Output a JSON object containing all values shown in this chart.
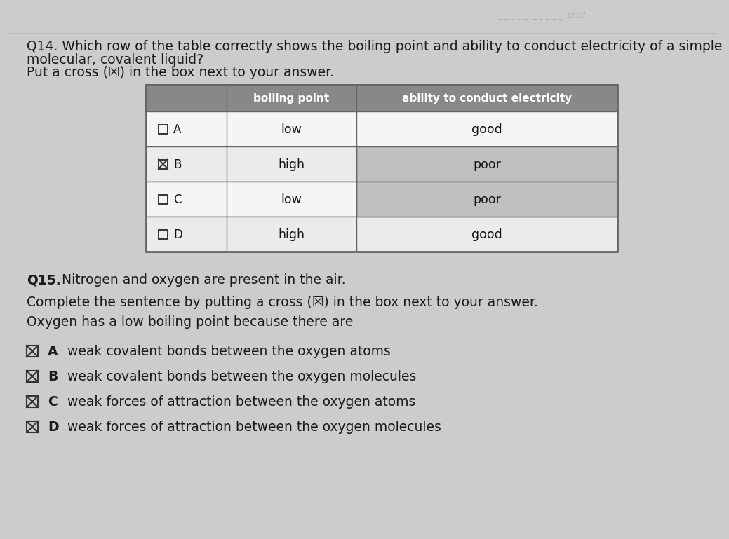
{
  "bg_color": "#cccccc",
  "q14_line1": "Q14. Which row of the table correctly shows the boiling point and ability to conduct electricity of a simple",
  "q14_line2": "molecular, covalent liquid?",
  "q14_instr": "Put a cross (☒) in the box next to your answer.",
  "table_header_col1": "boiling point",
  "table_header_col2": "ability to conduct electricity",
  "table_rows": [
    {
      "label": "A",
      "checked": false,
      "col1": "low",
      "col2": "good",
      "col2_shaded": false
    },
    {
      "label": "B",
      "checked": true,
      "col1": "high",
      "col2": "poor",
      "col2_shaded": true
    },
    {
      "label": "C",
      "checked": false,
      "col1": "low",
      "col2": "poor",
      "col2_shaded": true
    },
    {
      "label": "D",
      "checked": false,
      "col1": "high",
      "col2": "good",
      "col2_shaded": false
    }
  ],
  "header_bg": "#888888",
  "header_text_color": "#ffffff",
  "row_bg_even": "#f5f5f5",
  "row_bg_odd": "#ebebeb",
  "col2_shaded_color": "#c0c0c0",
  "table_border": "#666666",
  "q15_line1_bold": "Q15.",
  "q15_line1_rest": " Nitrogen and oxygen are present in the air.",
  "q15_line2": "Complete the sentence by putting a cross (☒) in the box next to your answer.",
  "q15_line3": "Oxygen has a low boiling point because there are",
  "options": [
    {
      "letter": "A",
      "text": "weak covalent bonds between the oxygen atoms"
    },
    {
      "letter": "B",
      "text": "weak covalent bonds between the oxygen molecules"
    },
    {
      "letter": "C",
      "text": "weak forces of attraction between the oxygen atoms"
    },
    {
      "letter": "D",
      "text": "weak forces of attraction between the oxygen molecules"
    }
  ],
  "top_scratch_text": "_ _ _ _ _ _ _ _  _ _ _ _ _  shall",
  "font_main": 13.5,
  "font_table": 12.5,
  "font_q15": 13.5
}
